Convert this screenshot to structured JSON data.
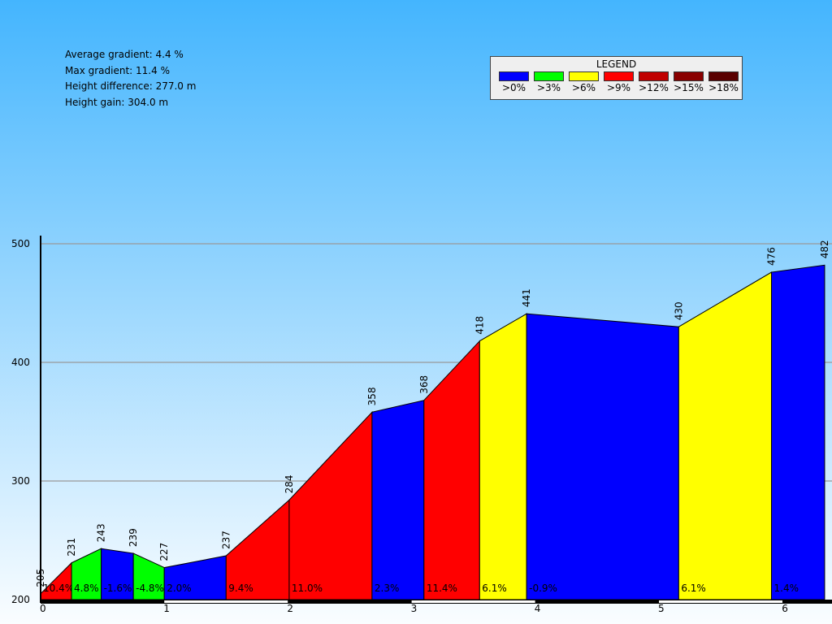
{
  "stats": {
    "avg": "Average gradient: 4.4 %",
    "max": "Max gradient: 11.4 %",
    "diff": "Height difference: 277.0 m",
    "gain": "Height gain: 304.0 m"
  },
  "legend": {
    "title": "LEGEND",
    "items": [
      {
        "label": ">0%",
        "color": "#0000ff"
      },
      {
        "label": ">3%",
        "color": "#00ff00"
      },
      {
        "label": ">6%",
        "color": "#ffff00"
      },
      {
        "label": ">9%",
        "color": "#ff0000"
      },
      {
        "label": ">12%",
        "color": "#c00000"
      },
      {
        "label": ">15%",
        "color": "#8a0000"
      },
      {
        "label": ">18%",
        "color": "#5a0000"
      }
    ]
  },
  "chart_data": {
    "type": "area",
    "xlabel": "",
    "ylabel": "",
    "xlim": [
      0,
      6.4
    ],
    "ylim": [
      200,
      500
    ],
    "x_ticks": [
      "0",
      "1",
      "2",
      "3",
      "4",
      "5",
      "6"
    ],
    "y_ticks": [
      "200",
      "300",
      "400",
      "500"
    ],
    "x": [
      0,
      0.25,
      0.49,
      0.75,
      1.0,
      1.5,
      2.01,
      2.68,
      3.1,
      3.55,
      3.93,
      5.16,
      5.91,
      6.34
    ],
    "heights": [
      205,
      231,
      243,
      239,
      227,
      237,
      284,
      358,
      368,
      418,
      441,
      430,
      476,
      482
    ],
    "height_labels": [
      "205",
      "231",
      "243",
      "239",
      "227",
      "237",
      "284",
      "358",
      "368",
      "418",
      "441",
      "430",
      "476",
      "482"
    ],
    "gradients": [
      "10.4%",
      "4.8%",
      "-1.6%",
      "-4.8%",
      "2.0%",
      "9.4%",
      "11.0%",
      "2.3%",
      "11.4%",
      "6.1%",
      "-0.9%",
      "6.1%",
      "1.4%"
    ],
    "segment_colors": [
      "#ff0000",
      "#00ff00",
      "#0000ff",
      "#00ff00",
      "#0000ff",
      "#ff0000",
      "#ff0000",
      "#0000ff",
      "#ff0000",
      "#ffff00",
      "#0000ff",
      "#ffff00",
      "#0000ff"
    ]
  }
}
